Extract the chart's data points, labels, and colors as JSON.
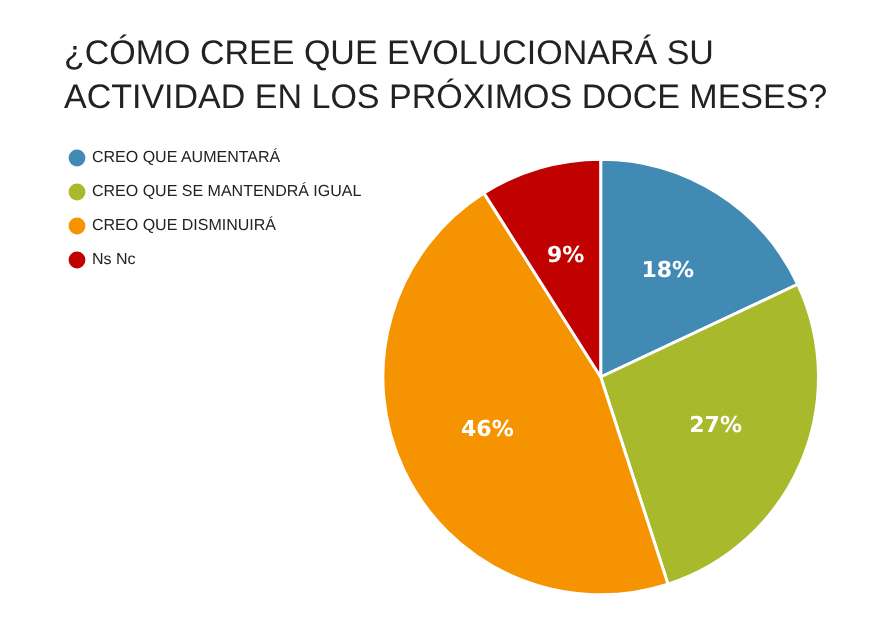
{
  "chart_data": {
    "type": "pie",
    "title": "¿CÓMO CREE QUE EVOLUCIONARÁ SU ACTIVIDAD EN LOS PRÓXIMOS DOCE MESES?",
    "categories": [
      "CREO QUE AUMENTARÁ",
      "CREO QUE SE MANTENDRÁ IGUAL",
      "CREO QUE DISMINUIRÁ",
      "Ns Nc"
    ],
    "values": [
      18,
      27,
      46,
      9
    ],
    "value_labels": [
      "18%",
      "27%",
      "46%",
      "9%"
    ],
    "colors": [
      "#408ab4",
      "#a8b92c",
      "#f59400",
      "#c10000"
    ],
    "legend": "left"
  }
}
